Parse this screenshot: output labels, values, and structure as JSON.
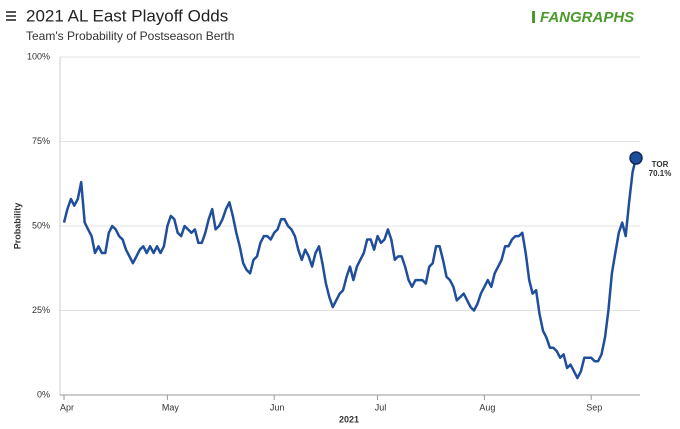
{
  "chart_data": {
    "type": "line",
    "title": "2021 AL East Playoff Odds",
    "subtitle": "Team's Probability of Postseason Berth",
    "logo": "FANGRAPHS",
    "ylabel": "Probability",
    "xlabel": "2021",
    "categories": [
      "Apr",
      null,
      null,
      null,
      null,
      null,
      null,
      null,
      null,
      null,
      null,
      null,
      null,
      null,
      null,
      null,
      null,
      null,
      null,
      null,
      null,
      null,
      null,
      null,
      null,
      null,
      null,
      null,
      null,
      null,
      "May",
      null,
      null,
      null,
      null,
      null,
      null,
      null,
      null,
      null,
      null,
      null,
      null,
      null,
      null,
      null,
      null,
      null,
      null,
      null,
      null,
      null,
      null,
      null,
      null,
      null,
      null,
      null,
      null,
      null,
      null,
      "Jun",
      null,
      null,
      null,
      null,
      null,
      null,
      null,
      null,
      null,
      null,
      null,
      null,
      null,
      null,
      null,
      null,
      null,
      null,
      null,
      null,
      null,
      null,
      null,
      null,
      null,
      null,
      null,
      null,
      null,
      "Jul",
      null,
      null,
      null,
      null,
      null,
      null,
      null,
      null,
      null,
      null,
      null,
      null,
      null,
      null,
      null,
      null,
      null,
      null,
      null,
      null,
      null,
      null,
      null,
      null,
      null,
      null,
      null,
      null,
      null,
      null,
      "Aug",
      null,
      null,
      null,
      null,
      null,
      null,
      null,
      null,
      null,
      null,
      null,
      null,
      null,
      null,
      null,
      null,
      null,
      null,
      null,
      null,
      null,
      null,
      null,
      null,
      null,
      null,
      null,
      null,
      null,
      null,
      "Sep",
      null,
      null,
      null,
      null,
      null,
      null,
      null,
      null,
      null,
      null,
      null,
      null,
      null
    ],
    "series": [
      {
        "name": "TOR",
        "color": "#1f4e9c",
        "end_label": "70.1%",
        "values": [
          51,
          55,
          58,
          56,
          58,
          63,
          51,
          49,
          47,
          42,
          44,
          42,
          42,
          48,
          50,
          49,
          47,
          46,
          43,
          41,
          39,
          41,
          43,
          44,
          42,
          44,
          42,
          44,
          42,
          44,
          50,
          53,
          52,
          48,
          47,
          50,
          49,
          48,
          49,
          45,
          45,
          48,
          52,
          55,
          49,
          50,
          52,
          55,
          57,
          53,
          48,
          44,
          39,
          37,
          36,
          40,
          41,
          45,
          47,
          47,
          46,
          48,
          49,
          52,
          52,
          50,
          49,
          47,
          43,
          40,
          43,
          41,
          38,
          42,
          44,
          39,
          33,
          29,
          26,
          28,
          30,
          31,
          35,
          38,
          34,
          38,
          40,
          42,
          46,
          46,
          43,
          47,
          45,
          46,
          49,
          46,
          40,
          41,
          41,
          38,
          34,
          32,
          34,
          34,
          34,
          33,
          38,
          39,
          44,
          44,
          40,
          35,
          34,
          32,
          28,
          29,
          30,
          28,
          26,
          25,
          27,
          30,
          32,
          34,
          32,
          36,
          38,
          40,
          44,
          44,
          46,
          47,
          47,
          48,
          42,
          34,
          30,
          31,
          24,
          19,
          17,
          14,
          14,
          13,
          11,
          12,
          8,
          9,
          7,
          5,
          7,
          11,
          11,
          11,
          10,
          10,
          12,
          17,
          25,
          36,
          42,
          48,
          51,
          47,
          57,
          66,
          70.1
        ]
      }
    ],
    "ylim": [
      0,
      100
    ],
    "yticks": [
      {
        "value": 0,
        "label": "0%"
      },
      {
        "value": 25,
        "label": "25%"
      },
      {
        "value": 50,
        "label": "50%"
      },
      {
        "value": 75,
        "label": "75%"
      },
      {
        "value": 100,
        "label": "100%"
      }
    ],
    "grid": true
  }
}
